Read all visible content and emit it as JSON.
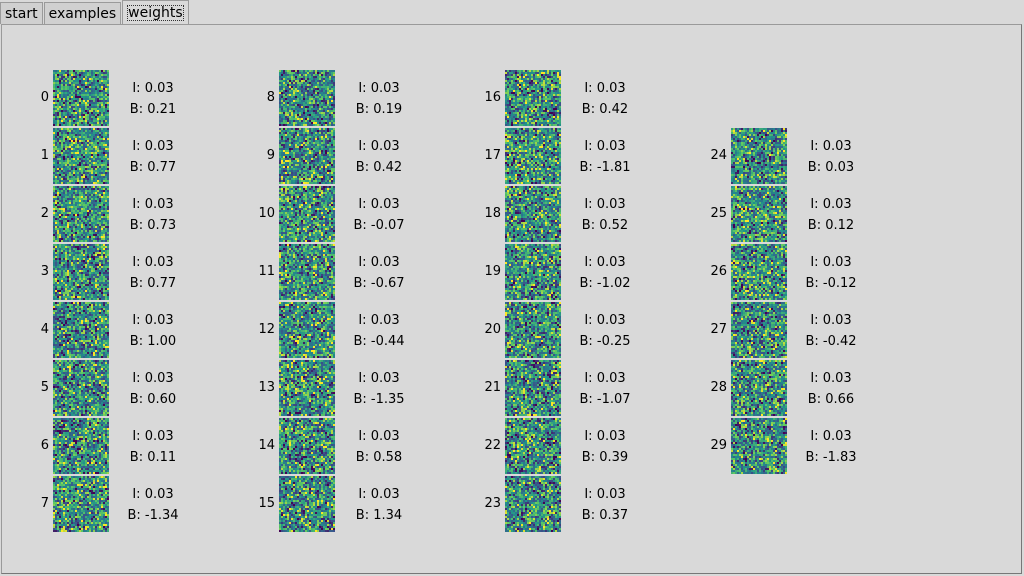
{
  "tabs": [
    {
      "label": "start",
      "active": false
    },
    {
      "label": "examples",
      "active": false
    },
    {
      "label": "weights",
      "active": true
    }
  ],
  "units": [
    {
      "index": "0",
      "i": "I: 0.03",
      "b": "B: 0.21",
      "seed": 11
    },
    {
      "index": "1",
      "i": "I: 0.03",
      "b": "B: 0.77",
      "seed": 12
    },
    {
      "index": "2",
      "i": "I: 0.03",
      "b": "B: 0.73",
      "seed": 13
    },
    {
      "index": "3",
      "i": "I: 0.03",
      "b": "B: 0.77",
      "seed": 14
    },
    {
      "index": "4",
      "i": "I: 0.03",
      "b": "B: 1.00",
      "seed": 15
    },
    {
      "index": "5",
      "i": "I: 0.03",
      "b": "B: 0.60",
      "seed": 16
    },
    {
      "index": "6",
      "i": "I: 0.03",
      "b": "B: 0.11",
      "seed": 17
    },
    {
      "index": "7",
      "i": "I: 0.03",
      "b": "B: -1.34",
      "seed": 18
    },
    {
      "index": "8",
      "i": "I: 0.03",
      "b": "B: 0.19",
      "seed": 19
    },
    {
      "index": "9",
      "i": "I: 0.03",
      "b": "B: 0.42",
      "seed": 20
    },
    {
      "index": "10",
      "i": "I: 0.03",
      "b": "B: -0.07",
      "seed": 21
    },
    {
      "index": "11",
      "i": "I: 0.03",
      "b": "B: -0.67",
      "seed": 22
    },
    {
      "index": "12",
      "i": "I: 0.03",
      "b": "B: -0.44",
      "seed": 23
    },
    {
      "index": "13",
      "i": "I: 0.03",
      "b": "B: -1.35",
      "seed": 24
    },
    {
      "index": "14",
      "i": "I: 0.03",
      "b": "B: 0.58",
      "seed": 25
    },
    {
      "index": "15",
      "i": "I: 0.03",
      "b": "B: 1.34",
      "seed": 26
    },
    {
      "index": "16",
      "i": "I: 0.03",
      "b": "B: 0.42",
      "seed": 27
    },
    {
      "index": "17",
      "i": "I: 0.03",
      "b": "B: -1.81",
      "seed": 28
    },
    {
      "index": "18",
      "i": "I: 0.03",
      "b": "B: 0.52",
      "seed": 29
    },
    {
      "index": "19",
      "i": "I: 0.03",
      "b": "B: -1.02",
      "seed": 30
    },
    {
      "index": "20",
      "i": "I: 0.03",
      "b": "B: -0.25",
      "seed": 31
    },
    {
      "index": "21",
      "i": "I: 0.03",
      "b": "B: -1.07",
      "seed": 32
    },
    {
      "index": "22",
      "i": "I: 0.03",
      "b": "B: 0.39",
      "seed": 33
    },
    {
      "index": "23",
      "i": "I: 0.03",
      "b": "B: 0.37",
      "seed": 34
    },
    {
      "index": "24",
      "i": "I: 0.03",
      "b": "B: 0.03",
      "seed": 35
    },
    {
      "index": "25",
      "i": "I: 0.03",
      "b": "B: 0.12",
      "seed": 36
    },
    {
      "index": "26",
      "i": "I: 0.03",
      "b": "B: -0.12",
      "seed": 37
    },
    {
      "index": "27",
      "i": "I: 0.03",
      "b": "B: -0.42",
      "seed": 38
    },
    {
      "index": "28",
      "i": "I: 0.03",
      "b": "B: 0.66",
      "seed": 39
    },
    {
      "index": "29",
      "i": "I: 0.03",
      "b": "B: -1.83",
      "seed": 40
    }
  ],
  "colormap": [
    "#440154",
    "#3b528b",
    "#21918c",
    "#5ec962",
    "#fde725"
  ]
}
